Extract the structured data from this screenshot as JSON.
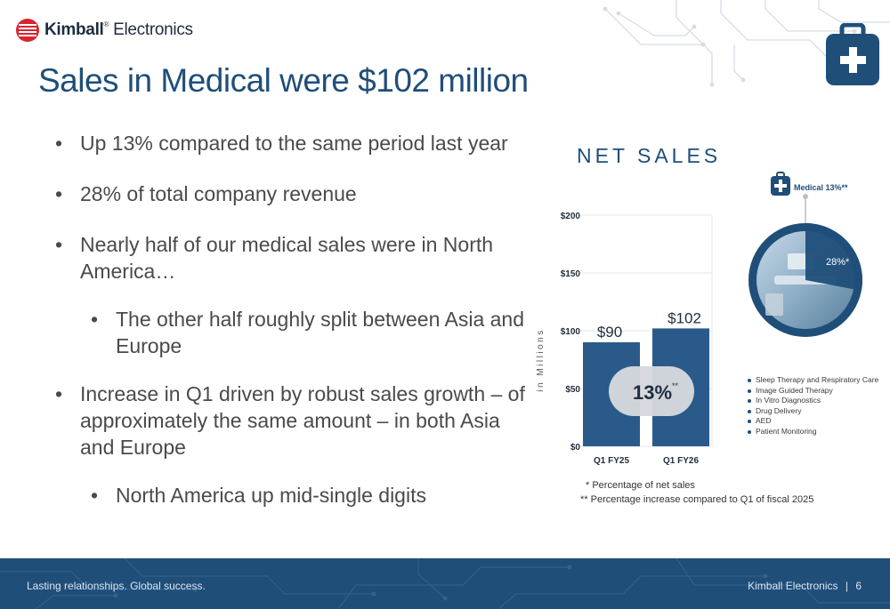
{
  "header": {
    "logo_bold": "Kimball",
    "logo_light": "Electronics",
    "logo_reg": "®"
  },
  "title": "Sales in Medical were $102 million",
  "bullets": [
    "Up 13% compared to the same period last year",
    "28% of total company revenue",
    "Nearly half of our medical sales were in North America…",
    "The other half roughly split between Asia and Europe",
    "Increase in Q1 driven by robust sales growth – of approximately the same amount – in both Asia and Europe",
    "North America up mid-single digits"
  ],
  "chart_title": "NET SALES",
  "chart_data": {
    "type": "bar",
    "categories": [
      "Q1 FY25",
      "Q1 FY26"
    ],
    "values": [
      90,
      102
    ],
    "value_labels": [
      "$90",
      "$102"
    ],
    "ylabel": "in Millions",
    "ylim": [
      0,
      200
    ],
    "yticks": [
      0,
      50,
      100,
      150,
      200
    ],
    "ytick_labels": [
      "$0",
      "$50",
      "$100",
      "$150",
      "$200"
    ],
    "annotation": "13%",
    "annotation_mark": "**",
    "bar_color": "#2a5a8a",
    "grid": true
  },
  "donut": {
    "label": "Medical 13%**",
    "segment_label": "28%*",
    "segment_value": 28
  },
  "segments": [
    "Sleep Therapy and Respiratory Care",
    "Image Guided Therapy",
    "In Vitro Diagnostics",
    "Drug Delivery",
    "AED",
    "Patient Monitoring"
  ],
  "footnotes": [
    "* Percentage of net sales",
    "** Percentage increase compared to Q1 of fiscal 2025"
  ],
  "footer": {
    "tagline": "Lasting relationships. Global success.",
    "company": "Kimball Electronics",
    "separator": "|",
    "page": "6"
  },
  "colors": {
    "brand_blue": "#1f4e79",
    "logo_red": "#d7262f"
  }
}
